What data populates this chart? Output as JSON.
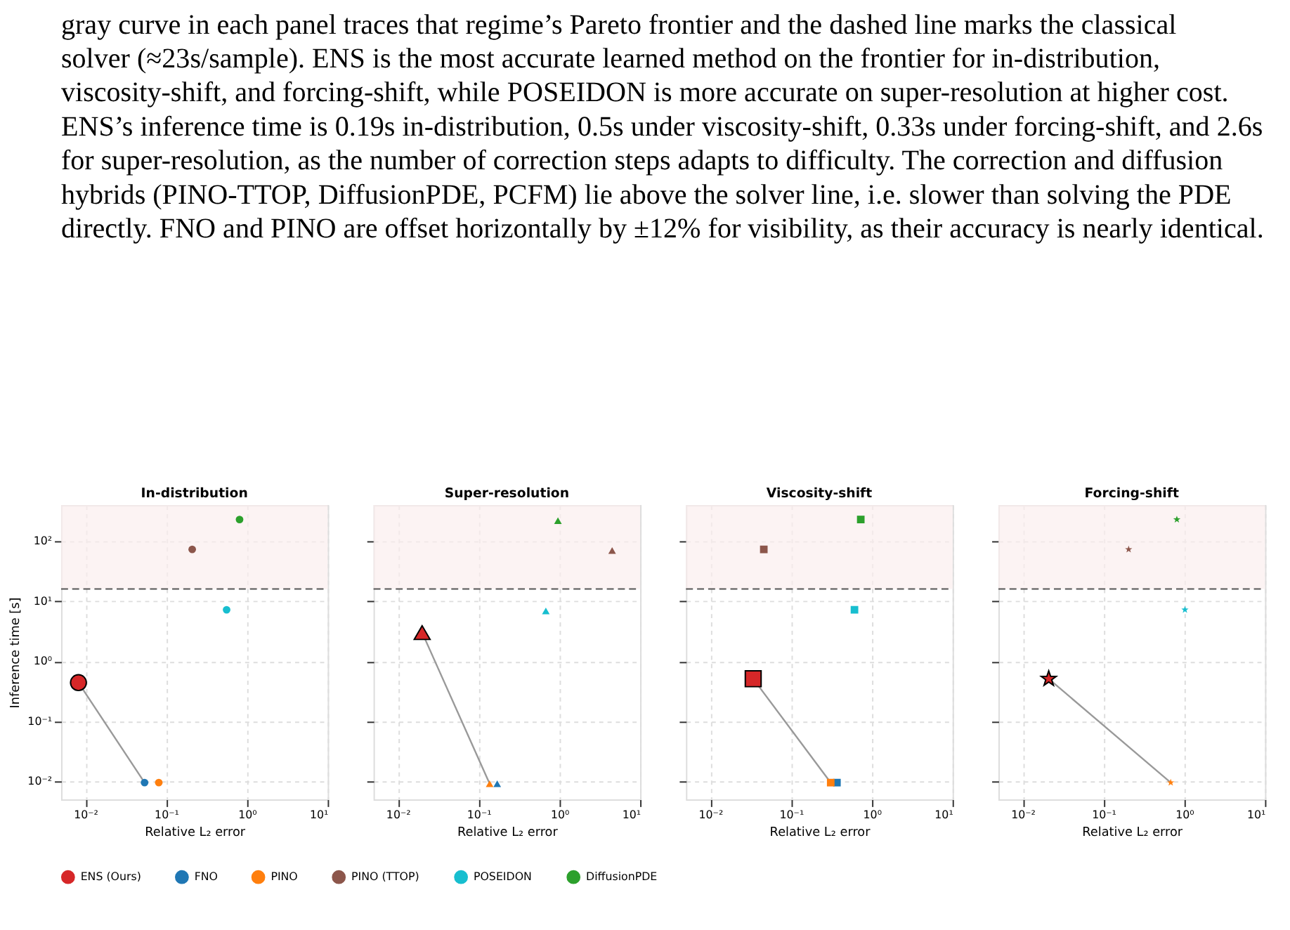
{
  "chart_data": [
    {
      "type": "other",
      "annotations": [
        "gray curve in each panel traces that regime’s Pareto frontier and the dashed line marks the classical",
        "solver (≈23s/sample). ENS is the most accurate learned method on the frontier for in-distribution,",
        "viscosity-shift, and forcing-shift, while POSEIDON is more accurate on super-resolution at higher cost.",
        "ENS’s inference time is 0.19s in-distribution, 0.5s under viscosity-shift, 0.33s under forcing-shift, and 2.6s",
        "for super-resolution, as the number of correction steps adapts to difficulty. The correction and diffusion",
        "hybrids (PINO-TTOP, DiffusionPDE, PCFM) lie above the solver line, i.e. slower than solving the PDE",
        "directly. FNO and PINO are offset horizontally by ±12% for visibility, as their accuracy is nearly identical."
      ]
    },
    {
      "type": "scatter",
      "title": "In-distribution",
      "xlabel": "Relative L₂ error",
      "ylabel": "Inference time [s]",
      "log": "xy",
      "grid": true,
      "marker": "circle",
      "legend": "bottom",
      "xlim": [
        0.005,
        10
      ],
      "ylim": [
        0.005,
        400
      ],
      "xticks": [
        {
          "value": 0.01,
          "label": "10⁻²"
        },
        {
          "value": 0.1,
          "label": "10⁻¹"
        },
        {
          "value": 1,
          "label": "10⁰"
        },
        {
          "value": 10,
          "label": "10¹"
        }
      ],
      "yticks": [
        {
          "value": 0.01,
          "label": "10⁻²"
        },
        {
          "value": 0.1,
          "label": "10⁻¹"
        },
        {
          "value": 1,
          "label": "10⁰"
        },
        {
          "value": 10,
          "label": "10¹"
        },
        {
          "value": 100,
          "label": "10²"
        }
      ],
      "bands": [
        {
          "axis": "y",
          "from": 16,
          "to": 400,
          "color": "#fbeeee"
        }
      ],
      "ref_lines": [
        {
          "axis": "y",
          "value": 16,
          "color": "#555555",
          "line_style": "dashed"
        }
      ],
      "series": [
        {
          "name": "ENS (Ours)",
          "color": "#d62728",
          "x": [
            0.0082
          ],
          "values": [
            0.44
          ]
        },
        {
          "name": "FNO",
          "color": "#1f77b4",
          "x": [
            0.054
          ],
          "values": [
            0.0095
          ]
        },
        {
          "name": "PINO",
          "color": "#ff7f0e",
          "x": [
            0.081
          ],
          "values": [
            0.0095
          ]
        },
        {
          "name": "PINO (TTOP)",
          "color": "#8c564b",
          "x": [
            0.21
          ],
          "values": [
            73
          ]
        },
        {
          "name": "POSEIDON",
          "color": "#17becf",
          "x": [
            0.56
          ],
          "values": [
            7.2
          ]
        },
        {
          "name": "DiffusionPDE",
          "color": "#2ca02c",
          "x": [
            0.81
          ],
          "values": [
            230
          ]
        },
        {
          "type": "line",
          "marker": "none",
          "color": "#999999",
          "x": [
            0.0082,
            0.054
          ],
          "values": [
            0.44,
            0.0095
          ]
        }
      ]
    },
    {
      "type": "scatter",
      "title": "Super-resolution",
      "xlabel": "Relative L₂ error",
      "log": "xy",
      "grid": true,
      "marker": "triangle",
      "tick_labels": "x",
      "xlim": [
        0.005,
        10
      ],
      "ylim": [
        0.005,
        400
      ],
      "xticks": [
        {
          "value": 0.01,
          "label": "10⁻²"
        },
        {
          "value": 0.1,
          "label": "10⁻¹"
        },
        {
          "value": 1,
          "label": "10⁰"
        },
        {
          "value": 10,
          "label": "10¹"
        }
      ],
      "yticks": [
        {
          "value": 0.01,
          "label": null
        },
        {
          "value": 0.1,
          "label": null
        },
        {
          "value": 1,
          "label": null
        },
        {
          "value": 10,
          "label": null
        },
        {
          "value": 100,
          "label": null
        }
      ],
      "bands": [
        {
          "axis": "y",
          "from": 16,
          "to": 400,
          "color": "#fbeeee"
        }
      ],
      "ref_lines": [
        {
          "axis": "y",
          "value": 16,
          "color": "#555555",
          "line_style": "dashed"
        }
      ],
      "series": [
        {
          "color": "#d62728",
          "x": [
            0.02
          ],
          "values": [
            3.0
          ]
        },
        {
          "color": "#1f77b4",
          "x": [
            0.17
          ],
          "values": [
            0.0091
          ]
        },
        {
          "color": "#ff7f0e",
          "x": [
            0.137
          ],
          "values": [
            0.0091
          ]
        },
        {
          "color": "#8c564b",
          "x": [
            4.5
          ],
          "values": [
            70
          ]
        },
        {
          "color": "#17becf",
          "x": [
            0.68
          ],
          "values": [
            6.9
          ]
        },
        {
          "color": "#2ca02c",
          "x": [
            0.96
          ],
          "values": [
            220
          ]
        },
        {
          "type": "line",
          "marker": "none",
          "color": "#999999",
          "x": [
            0.02,
            0.137
          ],
          "values": [
            3.0,
            0.0091
          ]
        }
      ]
    },
    {
      "type": "scatter",
      "title": "Viscosity-shift",
      "xlabel": "Relative L₂ error",
      "log": "xy",
      "grid": true,
      "marker": "square",
      "tick_labels": "x",
      "xlim": [
        0.005,
        10
      ],
      "ylim": [
        0.005,
        400
      ],
      "xticks": [
        {
          "value": 0.01,
          "label": "10⁻²"
        },
        {
          "value": 0.1,
          "label": "10⁻¹"
        },
        {
          "value": 1,
          "label": "10⁰"
        },
        {
          "value": 10,
          "label": "10¹"
        }
      ],
      "yticks": [
        {
          "value": 0.01,
          "label": null
        },
        {
          "value": 0.1,
          "label": null
        },
        {
          "value": 1,
          "label": null
        },
        {
          "value": 10,
          "label": null
        },
        {
          "value": 100,
          "label": null
        }
      ],
      "bands": [
        {
          "axis": "y",
          "from": 16,
          "to": 400,
          "color": "#fbeeee"
        }
      ],
      "ref_lines": [
        {
          "axis": "y",
          "value": 16,
          "color": "#555555",
          "line_style": "dashed"
        }
      ],
      "series": [
        {
          "color": "#d62728",
          "x": [
            0.034
          ],
          "values": [
            0.51
          ]
        },
        {
          "color": "#1f77b4",
          "x": [
            0.37
          ],
          "values": [
            0.0095
          ]
        },
        {
          "color": "#ff7f0e",
          "x": [
            0.31
          ],
          "values": [
            0.0095
          ]
        },
        {
          "color": "#8c564b",
          "x": [
            0.046
          ],
          "values": [
            73
          ]
        },
        {
          "color": "#17becf",
          "x": [
            0.61
          ],
          "values": [
            7.2
          ]
        },
        {
          "color": "#2ca02c",
          "x": [
            0.73
          ],
          "values": [
            230
          ]
        },
        {
          "type": "line",
          "marker": "none",
          "color": "#999999",
          "x": [
            0.034,
            0.31
          ],
          "values": [
            0.51,
            0.0095
          ]
        }
      ]
    },
    {
      "type": "scatter",
      "title": "Forcing-shift",
      "xlabel": "Relative L₂ error",
      "log": "xy",
      "grid": true,
      "marker": "star",
      "tick_labels": "x",
      "xlim": [
        0.005,
        10
      ],
      "ylim": [
        0.005,
        400
      ],
      "xticks": [
        {
          "value": 0.01,
          "label": "10⁻²"
        },
        {
          "value": 0.1,
          "label": "10⁻¹"
        },
        {
          "value": 1,
          "label": "10⁰"
        },
        {
          "value": 10,
          "label": "10¹"
        }
      ],
      "yticks": [
        {
          "value": 0.01,
          "label": null
        },
        {
          "value": 0.1,
          "label": null
        },
        {
          "value": 1,
          "label": null
        },
        {
          "value": 10,
          "label": null
        },
        {
          "value": 100,
          "label": null
        }
      ],
      "bands": [
        {
          "axis": "y",
          "from": 16,
          "to": 400,
          "color": "#fbeeee"
        }
      ],
      "ref_lines": [
        {
          "axis": "y",
          "value": 16,
          "color": "#555555",
          "line_style": "dashed"
        }
      ],
      "series": [
        {
          "color": "#d62728",
          "x": [
            0.021
          ],
          "values": [
            0.51
          ]
        },
        {
          "color": "#ff7f0e",
          "x": [
            0.68
          ],
          "values": [
            0.0095
          ]
        },
        {
          "color": "#8c564b",
          "x": [
            0.205
          ],
          "values": [
            73
          ]
        },
        {
          "color": "#17becf",
          "x": [
            1.02
          ],
          "values": [
            7.2
          ]
        },
        {
          "color": "#2ca02c",
          "x": [
            0.81
          ],
          "values": [
            230
          ]
        },
        {
          "type": "line",
          "marker": "none",
          "color": "#999999",
          "x": [
            0.021,
            0.68
          ],
          "values": [
            0.51,
            0.0095
          ]
        }
      ]
    }
  ]
}
